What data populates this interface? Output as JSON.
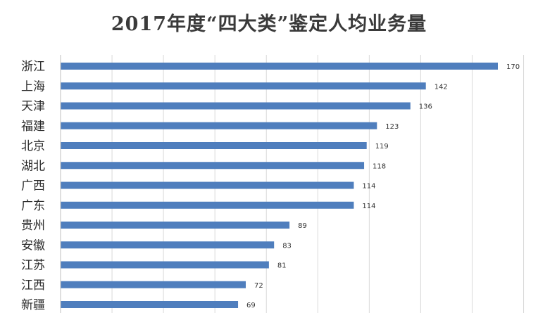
{
  "chart_data": {
    "type": "bar",
    "orientation": "horizontal",
    "title": "2017年度“四大类”鉴定人均业务量",
    "xlabel": "",
    "ylabel": "",
    "categories": [
      "浙江",
      "上海",
      "天津",
      "福建",
      "北京",
      "湖北",
      "广西",
      "广东",
      "贵州",
      "安徽",
      "江苏",
      "江西",
      "新疆"
    ],
    "values": [
      170,
      142,
      136,
      123,
      119,
      118,
      114,
      114,
      89,
      83,
      81,
      72,
      69
    ],
    "xlim": [
      0,
      180
    ],
    "grid": true,
    "legend": "none",
    "bar_color": "#4f7ebd",
    "grid_color": "#d9d9d9"
  }
}
